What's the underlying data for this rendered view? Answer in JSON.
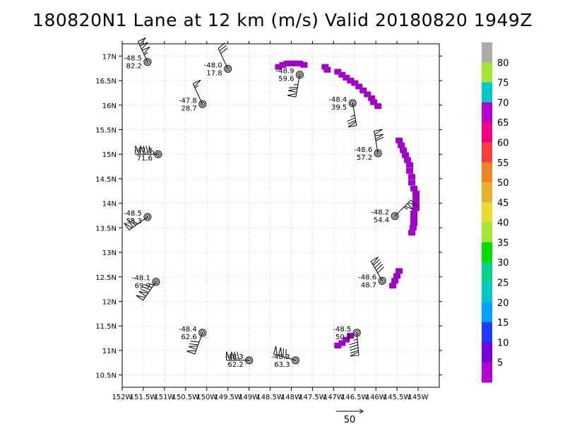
{
  "chart_data": {
    "type": "scatter",
    "title": "180820N1 Lane at 12 km (m/s) Valid 20180820 1949Z",
    "xlim": [
      -152,
      -144.5
    ],
    "ylim": [
      10.25,
      17.25
    ],
    "x_ticks": [
      {
        "value": -152,
        "label": "152W"
      },
      {
        "value": -151.5,
        "label": "151.5W"
      },
      {
        "value": -151,
        "label": "151W"
      },
      {
        "value": -150.5,
        "label": "150.5W"
      },
      {
        "value": -150,
        "label": "150W"
      },
      {
        "value": -149.5,
        "label": "149.5W"
      },
      {
        "value": -149,
        "label": "149W"
      },
      {
        "value": -148.5,
        "label": "148.5W"
      },
      {
        "value": -148,
        "label": "148W"
      },
      {
        "value": -147.5,
        "label": "147.5W"
      },
      {
        "value": -147,
        "label": "147W"
      },
      {
        "value": -146.5,
        "label": "146.5W"
      },
      {
        "value": -146,
        "label": "146W"
      },
      {
        "value": -145.5,
        "label": "145.5W"
      },
      {
        "value": -145,
        "label": "145W"
      }
    ],
    "y_ticks": [
      {
        "value": 10.5,
        "label": "10.5N"
      },
      {
        "value": 11,
        "label": "11N"
      },
      {
        "value": 11.5,
        "label": "11.5N"
      },
      {
        "value": 12,
        "label": "12N"
      },
      {
        "value": 12.5,
        "label": "12.5N"
      },
      {
        "value": 13,
        "label": "13N"
      },
      {
        "value": 13.5,
        "label": "13.5N"
      },
      {
        "value": 14,
        "label": "14N"
      },
      {
        "value": 14.5,
        "label": "14.5N"
      },
      {
        "value": 15,
        "label": "15N"
      },
      {
        "value": 15.5,
        "label": "15.5N"
      },
      {
        "value": 16,
        "label": "16N"
      },
      {
        "value": 16.5,
        "label": "16.5N"
      },
      {
        "value": 17,
        "label": "17N"
      }
    ],
    "grid": true,
    "stations": [
      {
        "lon": -151.4,
        "lat": 16.88,
        "temp": "-48.5",
        "speed": "82.2",
        "dir": 335
      },
      {
        "lon": -149.5,
        "lat": 16.74,
        "temp": "-48.0",
        "speed": "17.8",
        "dir": 335
      },
      {
        "lon": -147.8,
        "lat": 16.62,
        "temp": "-48.9",
        "speed": "59.6",
        "dir": 190
      },
      {
        "lon": -146.55,
        "lat": 16.04,
        "temp": "-48.4",
        "speed": "39.5",
        "dir": 170
      },
      {
        "lon": -150.1,
        "lat": 16.02,
        "temp": "-47.8",
        "speed": "28.7",
        "dir": 335
      },
      {
        "lon": -151.15,
        "lat": 15.0,
        "temp": "-47.8",
        "speed": "71.6",
        "dir": 270
      },
      {
        "lon": -145.95,
        "lat": 15.02,
        "temp": "-48.6",
        "speed": "57.2",
        "dir": 350
      },
      {
        "lon": -151.4,
        "lat": 13.72,
        "temp": "-48.5",
        "speed": "58.3",
        "dir": 235
      },
      {
        "lon": -145.55,
        "lat": 13.74,
        "temp": "-48.2",
        "speed": "54.4",
        "dir": 45
      },
      {
        "lon": -151.2,
        "lat": 12.4,
        "temp": "-48.1",
        "speed": "69.9",
        "dir": 215
      },
      {
        "lon": -145.85,
        "lat": 12.42,
        "temp": "-48.6",
        "speed": "48.7",
        "dir": 330
      },
      {
        "lon": -150.1,
        "lat": 11.36,
        "temp": "-48.4",
        "speed": "62.6",
        "dir": 200
      },
      {
        "lon": -146.45,
        "lat": 11.36,
        "temp": "-48.5",
        "speed": "50.8",
        "dir": 175
      },
      {
        "lon": -149.0,
        "lat": 10.8,
        "temp": "-48.3",
        "speed": "62.2",
        "dir": 270
      },
      {
        "lon": -147.9,
        "lat": 10.8,
        "temp": "-48.3",
        "speed": "63.3",
        "dir": 285
      }
    ],
    "colorbar": {
      "labels": [
        "5",
        "10",
        "15",
        "20",
        "25",
        "30",
        "35",
        "40",
        "45",
        "50",
        "55",
        "60",
        "65",
        "70",
        "75",
        "80"
      ],
      "colors": [
        "#b400d2",
        "#7800dc",
        "#1e3cff",
        "#00a0ff",
        "#00c8c8",
        "#00d28c",
        "#00dc00",
        "#a0e632",
        "#e6dc32",
        "#e6af2d",
        "#f08228",
        "#fa3c3c",
        "#f00082",
        "#b400d2",
        "#00c8c8",
        "#a0e632",
        "#aaaaaa"
      ]
    },
    "shaded_color": "#a000c8",
    "shaded_points": [
      [
        -148.3,
        16.78
      ],
      [
        -148.2,
        16.82
      ],
      [
        -148.1,
        16.85
      ],
      [
        -148.0,
        16.85
      ],
      [
        -147.9,
        16.85
      ],
      [
        -147.8,
        16.85
      ],
      [
        -147.7,
        16.82
      ],
      [
        -147.2,
        16.78
      ],
      [
        -147.15,
        16.72
      ],
      [
        -146.9,
        16.68
      ],
      [
        -146.8,
        16.62
      ],
      [
        -146.7,
        16.56
      ],
      [
        -146.6,
        16.5
      ],
      [
        -146.5,
        16.45
      ],
      [
        -146.4,
        16.38
      ],
      [
        -146.3,
        16.3
      ],
      [
        -146.2,
        16.22
      ],
      [
        -146.1,
        16.14
      ],
      [
        -146.05,
        16.06
      ],
      [
        -145.95,
        15.98
      ],
      [
        -145.45,
        15.28
      ],
      [
        -145.4,
        15.18
      ],
      [
        -145.35,
        15.08
      ],
      [
        -145.3,
        14.98
      ],
      [
        -145.25,
        14.88
      ],
      [
        -145.2,
        14.78
      ],
      [
        -145.2,
        14.66
      ],
      [
        -145.15,
        14.54
      ],
      [
        -145.15,
        14.42
      ],
      [
        -145.1,
        14.3
      ],
      [
        -145.05,
        14.2
      ],
      [
        -145.05,
        14.1
      ],
      [
        -145.05,
        14.0
      ],
      [
        -145.05,
        13.9
      ],
      [
        -145.1,
        13.8
      ],
      [
        -145.1,
        13.7
      ],
      [
        -145.1,
        13.6
      ],
      [
        -145.12,
        13.5
      ],
      [
        -145.15,
        13.4
      ],
      [
        -145.45,
        12.62
      ],
      [
        -145.5,
        12.52
      ],
      [
        -145.55,
        12.42
      ],
      [
        -145.6,
        12.32
      ],
      [
        -146.6,
        11.3
      ],
      [
        -146.7,
        11.22
      ],
      [
        -146.8,
        11.15
      ],
      [
        -146.9,
        11.1
      ]
    ],
    "reference_vector_label": "50"
  }
}
